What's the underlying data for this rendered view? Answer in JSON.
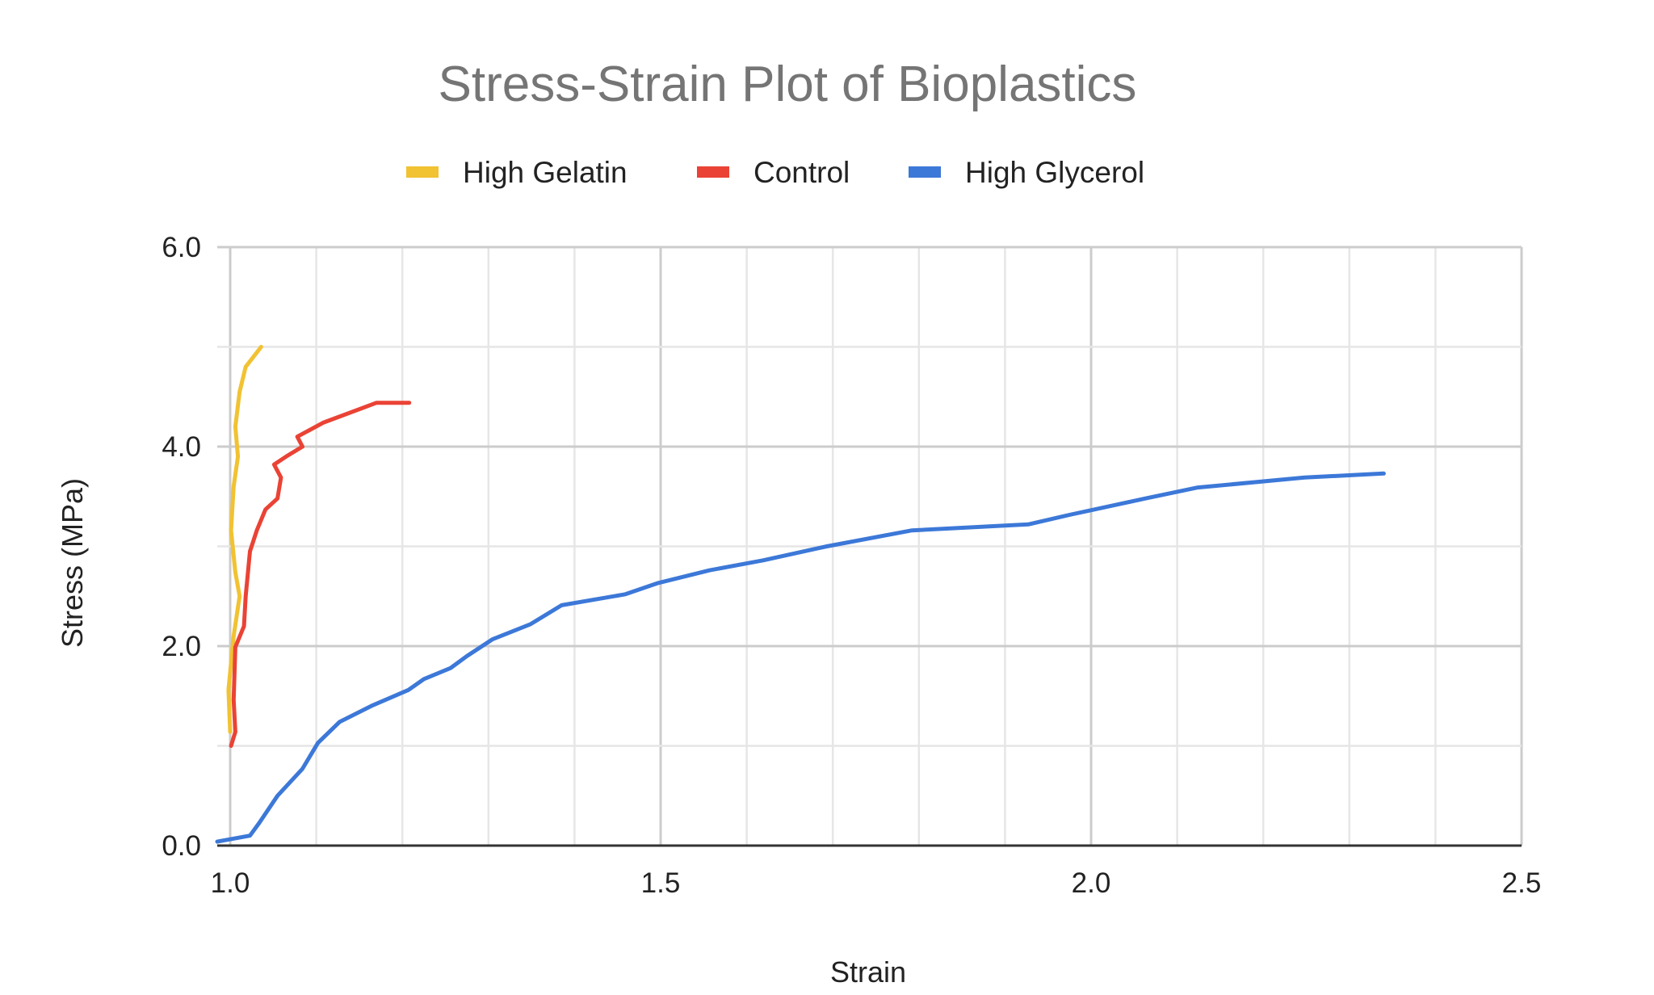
{
  "chart_data": {
    "type": "line",
    "title": "Stress-Strain Plot of Bioplastics",
    "xlabel": "Strain",
    "ylabel": "Stress (MPa)",
    "xlim": [
      1.0,
      2.5
    ],
    "ylim": [
      0,
      6
    ],
    "xticks": [
      "1.0",
      "1.5",
      "2.0",
      "2.5"
    ],
    "yticks": [
      "0.0",
      "2.0",
      "4.0",
      "6.0"
    ],
    "grid": true,
    "legend_position": "top",
    "series": [
      {
        "name": "High Gelatin",
        "color": "#f1c232",
        "points": [
          [
            1.0,
            1.14
          ],
          [
            0.998,
            1.56
          ],
          [
            1.004,
            2.1
          ],
          [
            1.011,
            2.5
          ],
          [
            1.006,
            2.74
          ],
          [
            1.001,
            3.16
          ],
          [
            1.004,
            3.6
          ],
          [
            1.009,
            3.9
          ],
          [
            1.006,
            4.2
          ],
          [
            1.011,
            4.55
          ],
          [
            1.018,
            4.8
          ],
          [
            1.036,
            5.0
          ]
        ]
      },
      {
        "name": "Control",
        "color": "#ea4335",
        "points": [
          [
            1.001,
            1.0
          ],
          [
            1.006,
            1.14
          ],
          [
            1.004,
            1.46
          ],
          [
            1.006,
            1.99
          ],
          [
            1.016,
            2.2
          ],
          [
            1.018,
            2.5
          ],
          [
            1.023,
            2.95
          ],
          [
            1.031,
            3.16
          ],
          [
            1.041,
            3.37
          ],
          [
            1.055,
            3.48
          ],
          [
            1.059,
            3.69
          ],
          [
            1.051,
            3.82
          ],
          [
            1.065,
            3.9
          ],
          [
            1.084,
            4.0
          ],
          [
            1.078,
            4.1
          ],
          [
            1.108,
            4.24
          ],
          [
            1.17,
            4.44
          ],
          [
            1.208,
            4.44
          ]
        ]
      },
      {
        "name": "High Glycerol",
        "color": "#3c78d8",
        "points": [
          [
            0.985,
            0.04
          ],
          [
            1.023,
            0.1
          ],
          [
            1.034,
            0.23
          ],
          [
            1.055,
            0.5
          ],
          [
            1.084,
            0.77
          ],
          [
            1.102,
            1.03
          ],
          [
            1.127,
            1.24
          ],
          [
            1.164,
            1.4
          ],
          [
            1.207,
            1.56
          ],
          [
            1.225,
            1.67
          ],
          [
            1.256,
            1.78
          ],
          [
            1.275,
            1.9
          ],
          [
            1.305,
            2.07
          ],
          [
            1.349,
            2.22
          ],
          [
            1.385,
            2.41
          ],
          [
            1.459,
            2.52
          ],
          [
            1.496,
            2.63
          ],
          [
            1.557,
            2.76
          ],
          [
            1.619,
            2.86
          ],
          [
            1.693,
            3.0
          ],
          [
            1.792,
            3.16
          ],
          [
            1.927,
            3.22
          ],
          [
            1.977,
            3.32
          ],
          [
            2.063,
            3.48
          ],
          [
            2.124,
            3.59
          ],
          [
            2.248,
            3.69
          ],
          [
            2.34,
            3.73
          ]
        ]
      }
    ]
  }
}
